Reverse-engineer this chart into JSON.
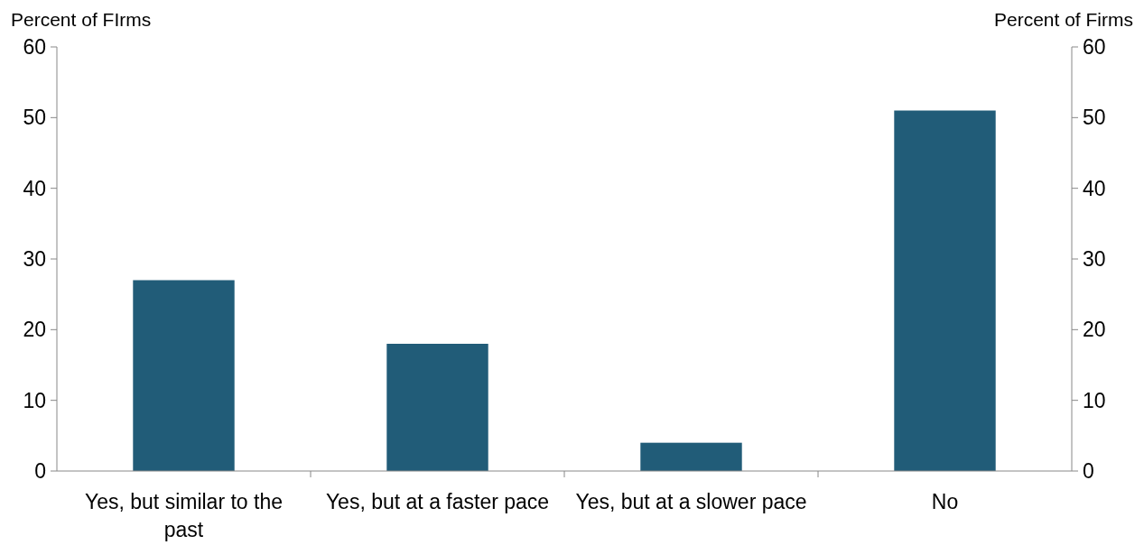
{
  "chart_data": {
    "type": "bar",
    "ylabel": "Percent of FIrms",
    "y2label": "Percent of Firms",
    "categories": [
      "Yes, but similar to the past",
      "Yes, but at a faster pace",
      "Yes, but at a slower pace",
      "No"
    ],
    "values": [
      27,
      18,
      4,
      51
    ],
    "color": "#215c78",
    "ylim": [
      0,
      60
    ],
    "yticks": [
      0,
      10,
      20,
      30,
      40,
      50,
      60
    ],
    "y2lim": [
      0,
      60
    ],
    "y2ticks": [
      0,
      10,
      20,
      30,
      40,
      50,
      60
    ],
    "grid": false
  }
}
